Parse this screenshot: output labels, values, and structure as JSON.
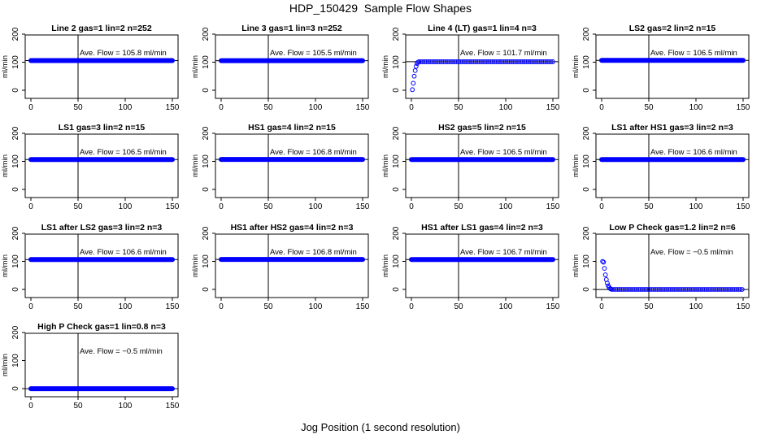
{
  "page": {
    "title": "HDP_150429  Sample Flow Shapes",
    "xlabel": "Jog Position (1 second resolution)"
  },
  "chart_data": [
    {
      "type": "scatter",
      "title": "Line 2 gas=1 lin=2 n=252",
      "annotation": "Ave. Flow =  105.8  ml/min",
      "ylabel": "ml/min",
      "xlim": [
        0,
        150
      ],
      "ylim": [
        0,
        200
      ],
      "x_ticks": [
        0,
        50,
        100,
        150
      ],
      "y_ticks": [
        0,
        100,
        200
      ],
      "y_tick_labels": [
        "0",
        "100",
        "200"
      ],
      "vline": 50,
      "hline": 105.8,
      "shape": "flat",
      "level": 105.8,
      "x_range": [
        0,
        150
      ],
      "marker_color": "#0000ff"
    },
    {
      "type": "scatter",
      "title": "Line 3 gas=1 lin=3 n=252",
      "annotation": "Ave. Flow =  105.5  ml/min",
      "ylabel": "ml/min",
      "xlim": [
        0,
        150
      ],
      "ylim": [
        0,
        200
      ],
      "x_ticks": [
        0,
        50,
        100,
        150
      ],
      "y_ticks": [
        0,
        100,
        200
      ],
      "y_tick_labels": [
        "0",
        "100",
        "200"
      ],
      "vline": 50,
      "hline": 105.5,
      "shape": "flat",
      "level": 105.5,
      "x_range": [
        0,
        150
      ],
      "marker_color": "#0000ff"
    },
    {
      "type": "scatter",
      "title": "Line 4 (LT) gas=1 lin=4 n=3",
      "annotation": "Ave. Flow =  101.7  ml/min",
      "ylabel": "ml/min",
      "xlim": [
        0,
        150
      ],
      "ylim": [
        0,
        200
      ],
      "x_ticks": [
        0,
        50,
        100,
        150
      ],
      "y_ticks": [
        0,
        100,
        200
      ],
      "y_tick_labels": [
        "0",
        "100",
        "200"
      ],
      "vline": 50,
      "hline": 101.7,
      "shape": "rise",
      "level": 101.7,
      "x_range": [
        0,
        150
      ],
      "points": [
        [
          1,
          2
        ],
        [
          2,
          25
        ],
        [
          3,
          50
        ],
        [
          4,
          70
        ],
        [
          5,
          85
        ],
        [
          6,
          95
        ],
        [
          7,
          100
        ]
      ],
      "marker_color": "#0000ff"
    },
    {
      "type": "scatter",
      "title": "LS2 gas=2 lin=2 n=15",
      "annotation": "Ave. Flow =  106.5  ml/min",
      "ylabel": "ml/min",
      "xlim": [
        0,
        150
      ],
      "ylim": [
        0,
        200
      ],
      "x_ticks": [
        0,
        50,
        100,
        150
      ],
      "y_ticks": [
        0,
        100,
        200
      ],
      "y_tick_labels": [
        "0",
        "100",
        "200"
      ],
      "vline": 50,
      "hline": 106.5,
      "shape": "flat",
      "level": 106.5,
      "x_range": [
        0,
        150
      ],
      "marker_color": "#0000ff"
    },
    {
      "type": "scatter",
      "title": "LS1 gas=3 lin=2 n=15",
      "annotation": "Ave. Flow =  106.5  ml/min",
      "ylabel": "ml/min",
      "xlim": [
        0,
        150
      ],
      "ylim": [
        0,
        200
      ],
      "x_ticks": [
        0,
        50,
        100,
        150
      ],
      "y_ticks": [
        0,
        100,
        200
      ],
      "y_tick_labels": [
        "0",
        "100",
        "200"
      ],
      "vline": 50,
      "hline": 106.5,
      "shape": "flat",
      "level": 106.5,
      "x_range": [
        0,
        150
      ],
      "marker_color": "#0000ff"
    },
    {
      "type": "scatter",
      "title": "HS1 gas=4 lin=2 n=15",
      "annotation": "Ave. Flow =  106.8  ml/min",
      "ylabel": "ml/min",
      "xlim": [
        0,
        150
      ],
      "ylim": [
        0,
        200
      ],
      "x_ticks": [
        0,
        50,
        100,
        150
      ],
      "y_ticks": [
        0,
        100,
        200
      ],
      "y_tick_labels": [
        "0",
        "100",
        "200"
      ],
      "vline": 50,
      "hline": 106.8,
      "shape": "flat",
      "level": 106.8,
      "x_range": [
        0,
        150
      ],
      "marker_color": "#0000ff"
    },
    {
      "type": "scatter",
      "title": "HS2 gas=5 lin=2 n=15",
      "annotation": "Ave. Flow =  106.5  ml/min",
      "ylabel": "ml/min",
      "xlim": [
        0,
        150
      ],
      "ylim": [
        0,
        200
      ],
      "x_ticks": [
        0,
        50,
        100,
        150
      ],
      "y_ticks": [
        0,
        100,
        200
      ],
      "y_tick_labels": [
        "0",
        "100",
        "200"
      ],
      "vline": 50,
      "hline": 106.5,
      "shape": "flat",
      "level": 106.5,
      "x_range": [
        0,
        150
      ],
      "marker_color": "#0000ff"
    },
    {
      "type": "scatter",
      "title": "LS1 after HS1 gas=3 lin=2 n=3",
      "annotation": "Ave. Flow =  106.6  ml/min",
      "ylabel": "ml/min",
      "xlim": [
        0,
        150
      ],
      "ylim": [
        0,
        200
      ],
      "x_ticks": [
        0,
        50,
        100,
        150
      ],
      "y_ticks": [
        0,
        100,
        200
      ],
      "y_tick_labels": [
        "0",
        "100",
        "200"
      ],
      "vline": 50,
      "hline": 106.6,
      "shape": "flat",
      "level": 106.6,
      "x_range": [
        0,
        150
      ],
      "marker_color": "#0000ff"
    },
    {
      "type": "scatter",
      "title": "LS1 after LS2 gas=3 lin=2 n=3",
      "annotation": "Ave. Flow =  106.6  ml/min",
      "ylabel": "ml/min",
      "xlim": [
        0,
        150
      ],
      "ylim": [
        0,
        200
      ],
      "x_ticks": [
        0,
        50,
        100,
        150
      ],
      "y_ticks": [
        0,
        100,
        200
      ],
      "y_tick_labels": [
        "0",
        "100",
        "200"
      ],
      "vline": 50,
      "hline": 106.6,
      "shape": "flat",
      "level": 106.6,
      "x_range": [
        0,
        150
      ],
      "marker_color": "#0000ff"
    },
    {
      "type": "scatter",
      "title": "HS1 after HS2 gas=4 lin=2 n=3",
      "annotation": "Ave. Flow =  106.8  ml/min",
      "ylabel": "ml/min",
      "xlim": [
        0,
        150
      ],
      "ylim": [
        0,
        200
      ],
      "x_ticks": [
        0,
        50,
        100,
        150
      ],
      "y_ticks": [
        0,
        100,
        200
      ],
      "y_tick_labels": [
        "0",
        "100",
        "200"
      ],
      "vline": 50,
      "hline": 106.8,
      "shape": "flat",
      "level": 106.8,
      "x_range": [
        0,
        150
      ],
      "marker_color": "#0000ff"
    },
    {
      "type": "scatter",
      "title": "HS1 after LS1 gas=4 lin=2 n=3",
      "annotation": "Ave. Flow =  106.7  ml/min",
      "ylabel": "ml/min",
      "xlim": [
        0,
        150
      ],
      "ylim": [
        0,
        200
      ],
      "x_ticks": [
        0,
        50,
        100,
        150
      ],
      "y_ticks": [
        0,
        100,
        200
      ],
      "y_tick_labels": [
        "0",
        "100",
        "200"
      ],
      "vline": 50,
      "hline": 106.7,
      "shape": "flat",
      "level": 106.7,
      "x_range": [
        0,
        150
      ],
      "marker_color": "#0000ff"
    },
    {
      "type": "scatter",
      "title": "Low P Check gas=1.2 lin=2 n=6",
      "annotation": "Ave. Flow =  −0.5  ml/min",
      "ylabel": "ml/min",
      "xlim": [
        0,
        150
      ],
      "ylim": [
        0,
        200
      ],
      "x_ticks": [
        0,
        50,
        100,
        150
      ],
      "y_ticks": [
        0,
        100,
        200
      ],
      "y_tick_labels": [
        "0",
        "100",
        "200"
      ],
      "vline": 50,
      "hline": -0.5,
      "shape": "decay",
      "level": -0.5,
      "x_range": [
        0,
        150
      ],
      "points": [
        [
          1,
          100
        ],
        [
          2,
          97
        ],
        [
          3,
          75
        ],
        [
          4,
          52
        ],
        [
          5,
          35
        ],
        [
          6,
          22
        ],
        [
          7,
          13
        ],
        [
          8,
          7
        ],
        [
          9,
          3
        ],
        [
          10,
          1
        ]
      ],
      "marker_color": "#0000ff"
    },
    {
      "type": "scatter",
      "title": "High P Check gas=1 lin=0.8 n=3",
      "annotation": "Ave. Flow =  −0.5  ml/min",
      "ylabel": "ml/min",
      "xlim": [
        0,
        150
      ],
      "ylim": [
        0,
        200
      ],
      "x_ticks": [
        0,
        50,
        100,
        150
      ],
      "y_ticks": [
        0,
        100,
        200
      ],
      "y_tick_labels": [
        "0",
        "100",
        "200"
      ],
      "vline": 50,
      "hline": -0.5,
      "shape": "flat",
      "level": -0.5,
      "x_range": [
        0,
        150
      ],
      "marker_color": "#0000ff"
    }
  ]
}
